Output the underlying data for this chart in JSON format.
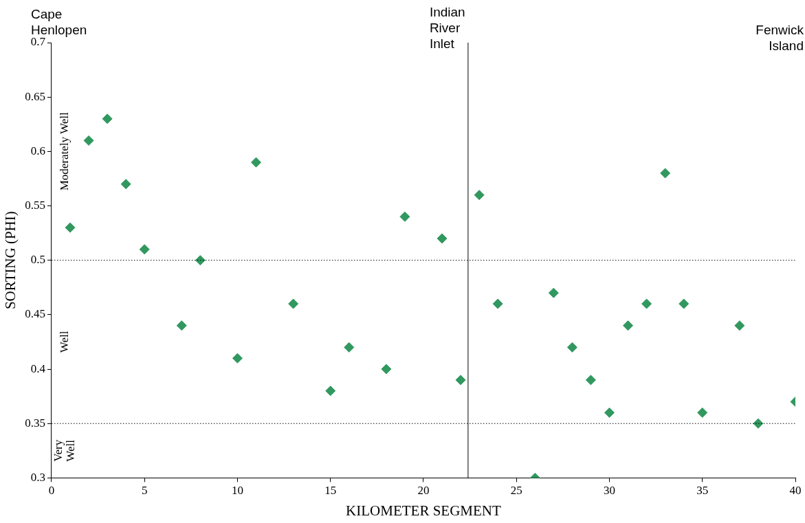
{
  "chart_data": {
    "type": "scatter",
    "xlabel": "KILOMETER SEGMENT",
    "ylabel": "SORTING (PHI)",
    "x": [
      1,
      2,
      3,
      4,
      5,
      7,
      8,
      10,
      11,
      13,
      15,
      16,
      18,
      19,
      21,
      22,
      23,
      24,
      26,
      27,
      28,
      29,
      30,
      31,
      32,
      33,
      34,
      35,
      37,
      38,
      40
    ],
    "series": [
      {
        "color": "#31985f",
        "values": [
          0.53,
          0.61,
          0.63,
          0.57,
          0.51,
          0.44,
          0.5,
          0.41,
          0.59,
          0.46,
          0.38,
          0.42,
          0.4,
          0.54,
          0.52,
          0.39,
          0.56,
          0.46,
          0.3,
          0.47,
          0.42,
          0.39,
          0.36,
          0.44,
          0.46,
          0.58,
          0.46,
          0.36,
          0.44,
          0.35,
          0.37
        ]
      }
    ],
    "xlim": [
      0,
      40
    ],
    "xticks": [
      0,
      5,
      10,
      15,
      20,
      25,
      30,
      35,
      40
    ],
    "ylim": [
      0.3,
      0.7
    ],
    "yticks": [
      0.3,
      0.35,
      0.4,
      0.45,
      0.5,
      0.55,
      0.6,
      0.65,
      0.7
    ],
    "marker": "diamond",
    "grid": false,
    "legend": false,
    "ref_lines": [
      {
        "axis": "x",
        "value": 22.4,
        "label": "Indian River Inlet",
        "color": "#000000",
        "line_style": "solid"
      },
      {
        "axis": "y",
        "value": 0.5,
        "color": "#000000",
        "line_style": "dotted"
      },
      {
        "axis": "y",
        "value": 0.35,
        "color": "#000000",
        "line_style": "dotted"
      }
    ],
    "annotations": [
      "Cape Henlopen",
      "Fenwick Island",
      "Moderately Well",
      "Well",
      "Very Well"
    ]
  }
}
